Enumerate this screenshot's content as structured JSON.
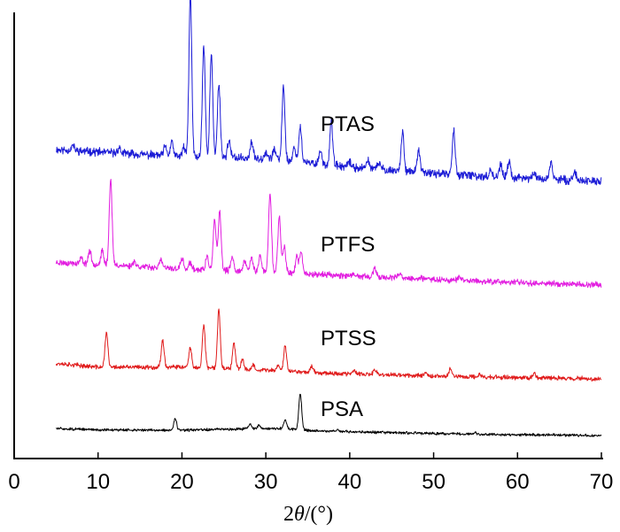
{
  "chart_data": {
    "type": "line",
    "xlabel_prefix": "2",
    "xlabel_var": "θ",
    "xlabel_suffix": "/(°)",
    "ylabel": "",
    "xlim": [
      0,
      70
    ],
    "ticks": [
      "0",
      "10",
      "20",
      "30",
      "40",
      "50",
      "60",
      "70"
    ],
    "tick_values": [
      0,
      10,
      20,
      30,
      40,
      50,
      60,
      70
    ],
    "grid": false,
    "legend": "inline labels",
    "series": [
      {
        "name": "PTAS",
        "color": "#1c1cd6",
        "baseline": [
          [
            5,
            0.18
          ],
          [
            20,
            0.14
          ],
          [
            30,
            0.13
          ],
          [
            40,
            0.08
          ],
          [
            55,
            0.03
          ],
          [
            70,
            0.0
          ]
        ],
        "peaks": [
          [
            7,
            0.03
          ],
          [
            12.5,
            0.03
          ],
          [
            18,
            0.05
          ],
          [
            18.8,
            0.08
          ],
          [
            20.2,
            0.05
          ],
          [
            21,
            0.92
          ],
          [
            22.6,
            0.63
          ],
          [
            23.5,
            0.58
          ],
          [
            24.4,
            0.42
          ],
          [
            25.6,
            0.1
          ],
          [
            28.3,
            0.09
          ],
          [
            30,
            0.04
          ],
          [
            31,
            0.06
          ],
          [
            32.1,
            0.42
          ],
          [
            33.4,
            0.08
          ],
          [
            34.1,
            0.2
          ],
          [
            36.5,
            0.08
          ],
          [
            37.8,
            0.25
          ],
          [
            40,
            0.03
          ],
          [
            42.2,
            0.05
          ],
          [
            43.5,
            0.04
          ],
          [
            46.3,
            0.22
          ],
          [
            48.2,
            0.12
          ],
          [
            52.4,
            0.25
          ],
          [
            56.8,
            0.04
          ],
          [
            58,
            0.07
          ],
          [
            59,
            0.09
          ],
          [
            62,
            0.03
          ],
          [
            64,
            0.1
          ],
          [
            66.8,
            0.05
          ]
        ]
      },
      {
        "name": "PTFS",
        "color": "#e21ee0",
        "baseline": [
          [
            5,
            0.17
          ],
          [
            12,
            0.15
          ],
          [
            20,
            0.12
          ],
          [
            30,
            0.1
          ],
          [
            40,
            0.07
          ],
          [
            55,
            0.03
          ],
          [
            70,
            0.0
          ]
        ],
        "peaks": [
          [
            8,
            0.04
          ],
          [
            9,
            0.1
          ],
          [
            10.5,
            0.1
          ],
          [
            11.5,
            0.65
          ],
          [
            14.3,
            0.04
          ],
          [
            17.5,
            0.06
          ],
          [
            20,
            0.08
          ],
          [
            21,
            0.05
          ],
          [
            23,
            0.1
          ],
          [
            23.9,
            0.38
          ],
          [
            24.5,
            0.44
          ],
          [
            26,
            0.1
          ],
          [
            27.5,
            0.08
          ],
          [
            28.3,
            0.1
          ],
          [
            29.3,
            0.12
          ],
          [
            30.5,
            0.6
          ],
          [
            31.6,
            0.42
          ],
          [
            32.2,
            0.2
          ],
          [
            33.7,
            0.12
          ],
          [
            34.2,
            0.16
          ],
          [
            43,
            0.06
          ],
          [
            46,
            0.03
          ],
          [
            53,
            0.03
          ]
        ]
      },
      {
        "name": "PTSS",
        "color": "#e01c1c",
        "baseline": [
          [
            5,
            0.16
          ],
          [
            10,
            0.12
          ],
          [
            20,
            0.12
          ],
          [
            30,
            0.09
          ],
          [
            40,
            0.05
          ],
          [
            55,
            0.02
          ],
          [
            70,
            0.0
          ]
        ],
        "peaks": [
          [
            11,
            0.36
          ],
          [
            17.7,
            0.28
          ],
          [
            21,
            0.2
          ],
          [
            22.6,
            0.44
          ],
          [
            24.4,
            0.6
          ],
          [
            26.2,
            0.26
          ],
          [
            27.2,
            0.1
          ],
          [
            28.5,
            0.05
          ],
          [
            31.5,
            0.06
          ],
          [
            32.3,
            0.26
          ],
          [
            35.5,
            0.06
          ],
          [
            40.5,
            0.04
          ],
          [
            43,
            0.05
          ],
          [
            49,
            0.04
          ],
          [
            52,
            0.08
          ],
          [
            55.5,
            0.03
          ],
          [
            62,
            0.05
          ]
        ]
      },
      {
        "name": "PSA",
        "color": "#000000",
        "baseline": [
          [
            5,
            0.12
          ],
          [
            10,
            0.1
          ],
          [
            20,
            0.09
          ],
          [
            28,
            0.12
          ],
          [
            32,
            0.12
          ],
          [
            36,
            0.08
          ],
          [
            45,
            0.05
          ],
          [
            55,
            0.02
          ],
          [
            70,
            0.0
          ]
        ],
        "peaks": [
          [
            19.2,
            0.2
          ],
          [
            28.1,
            0.08
          ],
          [
            29.2,
            0.06
          ],
          [
            32.3,
            0.16
          ],
          [
            34.1,
            0.64
          ],
          [
            38.5,
            0.03
          ],
          [
            55,
            0.03
          ]
        ]
      }
    ]
  }
}
